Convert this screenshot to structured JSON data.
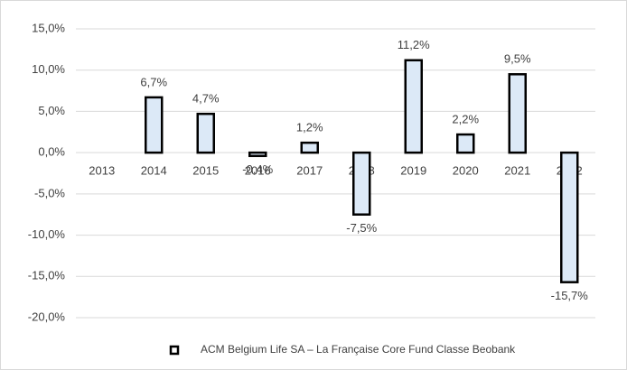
{
  "chart_data": {
    "type": "bar",
    "categories": [
      "2013",
      "2014",
      "2015",
      "2016",
      "2017",
      "2018",
      "2019",
      "2020",
      "2021",
      "2022"
    ],
    "series": [
      {
        "name": "ACM Belgium Life SA – La Française Core Fund Classe Beobank",
        "color": "#dce9f7",
        "values": [
          null,
          6.7,
          4.7,
          -0.4,
          1.2,
          -7.5,
          11.2,
          2.2,
          9.5,
          -15.7
        ],
        "value_labels": [
          null,
          "6,7%",
          "4,7%",
          "-0,4%",
          "1,2%",
          "-7,5%",
          "11,2%",
          "2,2%",
          "9,5%",
          "-15,7%"
        ]
      }
    ],
    "ylim": [
      -20,
      15
    ],
    "yticks": [
      {
        "value": -20,
        "label": "-20,0%"
      },
      {
        "value": -15,
        "label": "-15,0%"
      },
      {
        "value": -10,
        "label": "-10,0%"
      },
      {
        "value": -5,
        "label": "-5,0%"
      },
      {
        "value": 0,
        "label": "0,0%"
      },
      {
        "value": 5,
        "label": "5,0%"
      },
      {
        "value": 10,
        "label": "10,0%"
      },
      {
        "value": 15,
        "label": "15,0%"
      }
    ],
    "grid": true,
    "legend": "bottom"
  }
}
